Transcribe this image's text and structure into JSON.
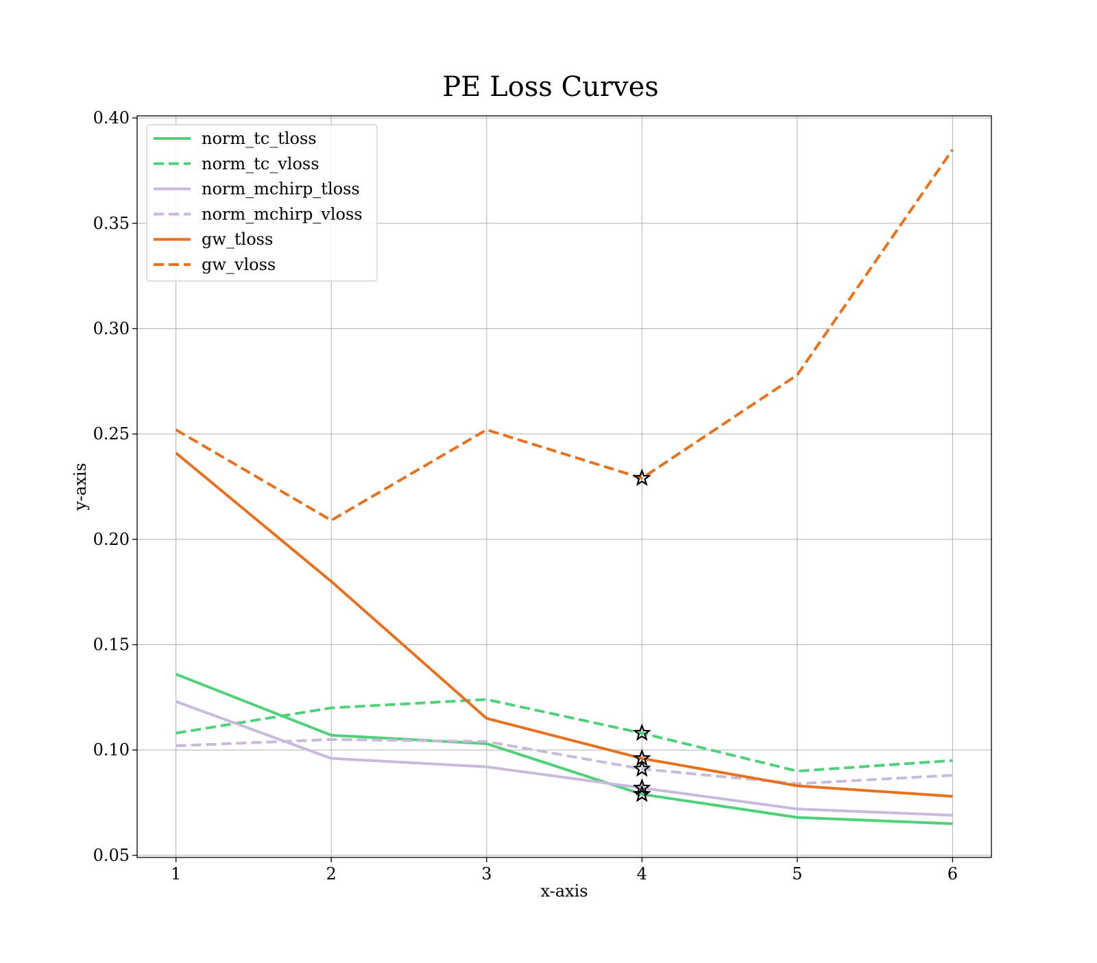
{
  "chart_data": {
    "type": "line",
    "title": "PE Loss Curves",
    "xlabel": "x-axis",
    "ylabel": "y-axis",
    "x": [
      1,
      2,
      3,
      4,
      5,
      6
    ],
    "xticks": [
      "1",
      "2",
      "3",
      "4",
      "5",
      "6"
    ],
    "yticks": [
      "0.05",
      "0.10",
      "0.15",
      "0.20",
      "0.25",
      "0.30",
      "0.35",
      "0.40"
    ],
    "xlim": [
      0.75,
      6.25
    ],
    "ylim": [
      0.049,
      0.401
    ],
    "grid": true,
    "legend_position": "upper-left",
    "series": [
      {
        "name": "norm_tc_tloss",
        "values": [
          0.136,
          0.107,
          0.103,
          0.079,
          0.068,
          0.065
        ],
        "color": "#4fd17a",
        "dash": false
      },
      {
        "name": "norm_tc_vloss",
        "values": [
          0.108,
          0.12,
          0.124,
          0.108,
          0.09,
          0.095
        ],
        "color": "#4fd17a",
        "dash": true
      },
      {
        "name": "norm_mchirp_tloss",
        "values": [
          0.123,
          0.096,
          0.092,
          0.082,
          0.072,
          0.069
        ],
        "color": "#c9b9dd",
        "dash": false
      },
      {
        "name": "norm_mchirp_vloss",
        "values": [
          0.102,
          0.105,
          0.104,
          0.091,
          0.084,
          0.088
        ],
        "color": "#c9b9dd",
        "dash": true
      },
      {
        "name": "gw_tloss",
        "values": [
          0.241,
          0.18,
          0.115,
          0.096,
          0.083,
          0.078
        ],
        "color": "#e8711e",
        "dash": false
      },
      {
        "name": "gw_vloss",
        "values": [
          0.252,
          0.209,
          0.252,
          0.229,
          0.278,
          0.385
        ],
        "color": "#e8711e",
        "dash": true
      }
    ],
    "markers": {
      "symbol": "star",
      "x": 4,
      "y": [
        0.229,
        0.108,
        0.096,
        0.091,
        0.082,
        0.079
      ]
    }
  }
}
